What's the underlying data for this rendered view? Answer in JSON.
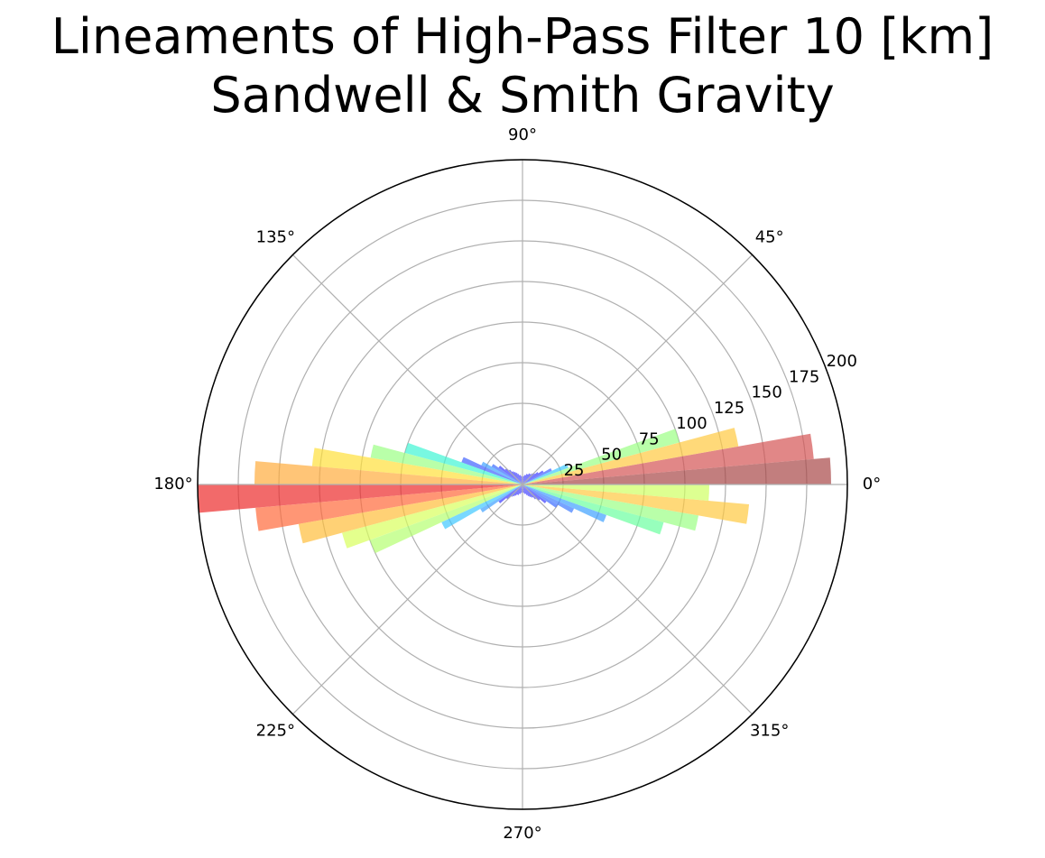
{
  "chart_data": {
    "type": "polar-bar",
    "title": [
      "Lineaments of High-Pass Filter 10 [km]",
      "Sandwell & Smith Gravity"
    ],
    "angle_ticks": [
      "0°",
      "45°",
      "90°",
      "135°",
      "180°",
      "225°",
      "270°",
      "315°"
    ],
    "radial_ticks": [
      "25",
      "50",
      "75",
      "100",
      "125",
      "150",
      "175",
      "200"
    ],
    "rlim": [
      0,
      200
    ],
    "bin_width_deg": 5,
    "bins": [
      {
        "angle": 2.5,
        "value": 190,
        "color": "#a84747"
      },
      {
        "angle": 7.5,
        "value": 180,
        "color": "#d45454"
      },
      {
        "angle": 12.5,
        "value": 135,
        "color": "#ffc940"
      },
      {
        "angle": 17.5,
        "value": 100,
        "color": "#9bff84"
      },
      {
        "angle": 22.5,
        "value": 30,
        "color": "#3fc8ff"
      },
      {
        "angle": 27.5,
        "value": 20,
        "color": "#4262ff"
      },
      {
        "angle": 32.5,
        "value": 15,
        "color": "#3a3aff"
      },
      {
        "angle": 37.5,
        "value": 12,
        "color": "#3a3aff"
      },
      {
        "angle": 42.5,
        "value": 10,
        "color": "#3a3aff"
      },
      {
        "angle": 47.5,
        "value": 9,
        "color": "#3a3aff"
      },
      {
        "angle": 52.5,
        "value": 8,
        "color": "#3a3aff"
      },
      {
        "angle": 57.5,
        "value": 8,
        "color": "#3a3aff"
      },
      {
        "angle": 62.5,
        "value": 7,
        "color": "#3a3aff"
      },
      {
        "angle": 67.5,
        "value": 7,
        "color": "#3a3aff"
      },
      {
        "angle": 72.5,
        "value": 6,
        "color": "#3a3aff"
      },
      {
        "angle": 77.5,
        "value": 6,
        "color": "#3a3aff"
      },
      {
        "angle": 82.5,
        "value": 5,
        "color": "#3a3aff"
      },
      {
        "angle": 87.5,
        "value": 5,
        "color": "#3a3aff"
      },
      {
        "angle": 92.5,
        "value": 5,
        "color": "#3a3aff"
      },
      {
        "angle": 97.5,
        "value": 5,
        "color": "#3a3aff"
      },
      {
        "angle": 102.5,
        "value": 6,
        "color": "#3a3aff"
      },
      {
        "angle": 107.5,
        "value": 6,
        "color": "#3a3aff"
      },
      {
        "angle": 112.5,
        "value": 7,
        "color": "#3a3aff"
      },
      {
        "angle": 117.5,
        "value": 8,
        "color": "#3a3aff"
      },
      {
        "angle": 122.5,
        "value": 9,
        "color": "#3a3aff"
      },
      {
        "angle": 127.5,
        "value": 10,
        "color": "#3a3aff"
      },
      {
        "angle": 132.5,
        "value": 12,
        "color": "#3a3aff"
      },
      {
        "angle": 137.5,
        "value": 14,
        "color": "#3a3aff"
      },
      {
        "angle": 142.5,
        "value": 18,
        "color": "#3a3aff"
      },
      {
        "angle": 147.5,
        "value": 22,
        "color": "#3a6bff"
      },
      {
        "angle": 152.5,
        "value": 28,
        "color": "#3ea1ff"
      },
      {
        "angle": 157.5,
        "value": 40,
        "color": "#4262ff"
      },
      {
        "angle": 162.5,
        "value": 75,
        "color": "#3ff5d4"
      },
      {
        "angle": 167.5,
        "value": 95,
        "color": "#9bff84"
      },
      {
        "angle": 172.5,
        "value": 130,
        "color": "#ffe03a"
      },
      {
        "angle": 177.5,
        "value": 165,
        "color": "#ffad3d"
      },
      {
        "angle": 182.5,
        "value": 200,
        "color": "#ec2b2b"
      },
      {
        "angle": 187.5,
        "value": 165,
        "color": "#ff6a3a"
      },
      {
        "angle": 192.5,
        "value": 140,
        "color": "#ffbd3b"
      },
      {
        "angle": 197.5,
        "value": 115,
        "color": "#d9ff5c"
      },
      {
        "angle": 202.5,
        "value": 100,
        "color": "#b5ff71"
      },
      {
        "angle": 207.5,
        "value": 55,
        "color": "#3fc8ff"
      },
      {
        "angle": 212.5,
        "value": 30,
        "color": "#3ea1ff"
      },
      {
        "angle": 217.5,
        "value": 18,
        "color": "#3a3aff"
      },
      {
        "angle": 222.5,
        "value": 13,
        "color": "#3a3aff"
      },
      {
        "angle": 227.5,
        "value": 10,
        "color": "#3a3aff"
      },
      {
        "angle": 232.5,
        "value": 9,
        "color": "#3a3aff"
      },
      {
        "angle": 237.5,
        "value": 8,
        "color": "#3a3aff"
      },
      {
        "angle": 242.5,
        "value": 7,
        "color": "#3a3aff"
      },
      {
        "angle": 247.5,
        "value": 7,
        "color": "#3a3aff"
      },
      {
        "angle": 252.5,
        "value": 6,
        "color": "#3a3aff"
      },
      {
        "angle": 257.5,
        "value": 6,
        "color": "#3a3aff"
      },
      {
        "angle": 262.5,
        "value": 5,
        "color": "#3a3aff"
      },
      {
        "angle": 267.5,
        "value": 5,
        "color": "#3a3aff"
      },
      {
        "angle": 272.5,
        "value": 5,
        "color": "#3a3aff"
      },
      {
        "angle": 277.5,
        "value": 5,
        "color": "#3a3aff"
      },
      {
        "angle": 282.5,
        "value": 6,
        "color": "#3a3aff"
      },
      {
        "angle": 287.5,
        "value": 6,
        "color": "#3a3aff"
      },
      {
        "angle": 292.5,
        "value": 7,
        "color": "#3a3aff"
      },
      {
        "angle": 297.5,
        "value": 8,
        "color": "#3a3aff"
      },
      {
        "angle": 302.5,
        "value": 9,
        "color": "#3a3aff"
      },
      {
        "angle": 307.5,
        "value": 10,
        "color": "#3a3aff"
      },
      {
        "angle": 312.5,
        "value": 12,
        "color": "#3a3aff"
      },
      {
        "angle": 317.5,
        "value": 14,
        "color": "#3a3aff"
      },
      {
        "angle": 322.5,
        "value": 18,
        "color": "#3a3aff"
      },
      {
        "angle": 327.5,
        "value": 25,
        "color": "#3a6bff"
      },
      {
        "angle": 332.5,
        "value": 35,
        "color": "#3f7cff"
      },
      {
        "angle": 337.5,
        "value": 55,
        "color": "#3ea1ff"
      },
      {
        "angle": 342.5,
        "value": 90,
        "color": "#6bff9f"
      },
      {
        "angle": 347.5,
        "value": 110,
        "color": "#9bff84"
      },
      {
        "angle": 352.5,
        "value": 140,
        "color": "#ffc940"
      },
      {
        "angle": 357.5,
        "value": 115,
        "color": "#cfff62"
      }
    ]
  }
}
